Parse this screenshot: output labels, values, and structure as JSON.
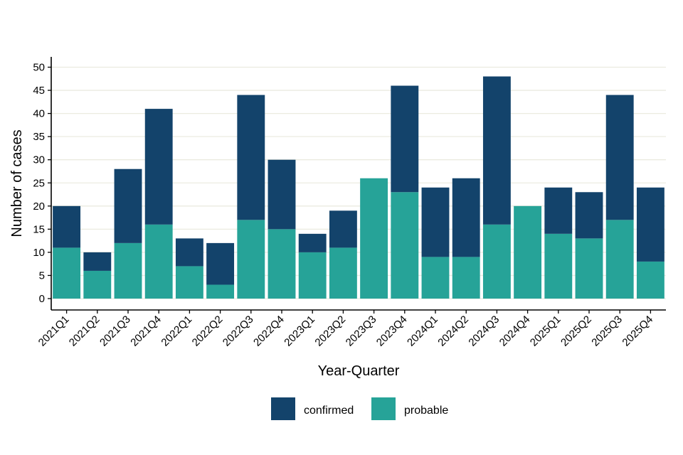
{
  "chart_data": {
    "type": "bar",
    "stacked": true,
    "title": "",
    "xlabel": "Year-Quarter",
    "ylabel": "Number of cases",
    "ylim": [
      0,
      52
    ],
    "yticks": [
      0,
      5,
      10,
      15,
      20,
      25,
      30,
      35,
      40,
      45,
      50
    ],
    "grid": "horizontal",
    "legend_position": "bottom",
    "categories": [
      "2021Q1",
      "2021Q2",
      "2021Q3",
      "2021Q4",
      "2022Q1",
      "2022Q2",
      "2022Q3",
      "2022Q4",
      "2023Q1",
      "2023Q2",
      "2023Q3",
      "2023Q4",
      "2024Q1",
      "2024Q2",
      "2024Q3",
      "2024Q4",
      "2025Q1",
      "2025Q2",
      "2025Q3",
      "2025Q4"
    ],
    "series": [
      {
        "name": "probable",
        "color": "#26a398",
        "values": [
          11,
          6,
          12,
          16,
          7,
          3,
          17,
          15,
          10,
          11,
          26,
          23,
          9,
          9,
          16,
          20,
          14,
          13,
          17,
          8
        ]
      },
      {
        "name": "confirmed",
        "color": "#13436b",
        "values": [
          9,
          4,
          16,
          25,
          6,
          9,
          27,
          15,
          4,
          8,
          0,
          23,
          15,
          17,
          32,
          0,
          10,
          10,
          27,
          16
        ]
      }
    ],
    "legend_order": [
      "confirmed",
      "probable"
    ]
  }
}
